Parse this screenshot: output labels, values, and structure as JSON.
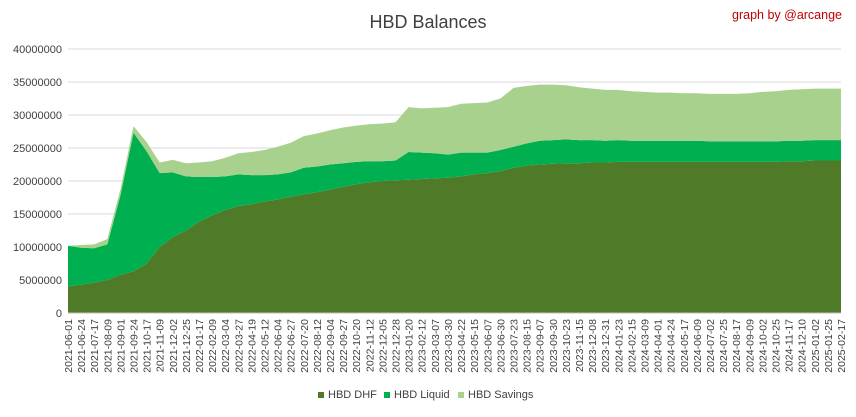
{
  "chart_data": {
    "type": "area",
    "stacked": true,
    "title": "HBD Balances",
    "credit": "graph by @arcange",
    "credit_color": "#c00000",
    "xlabel": "",
    "ylabel": "",
    "ylim": [
      0,
      40000000
    ],
    "y_ticks": [
      "0",
      "5000000",
      "10000000",
      "15000000",
      "20000000",
      "25000000",
      "30000000",
      "35000000",
      "40000000"
    ],
    "grid": true,
    "legend_position": "bottom",
    "x_tick_labels": [
      "2021-06-01",
      "2021-06-24",
      "2021-07-17",
      "2021-08-09",
      "2021-09-01",
      "2021-09-24",
      "2021-10-17",
      "2021-11-09",
      "2021-12-02",
      "2021-12-25",
      "2022-01-17",
      "2022-02-09",
      "2022-03-04",
      "2022-03-27",
      "2022-04-19",
      "2022-05-12",
      "2022-06-04",
      "2022-06-27",
      "2022-07-20",
      "2022-08-12",
      "2022-09-04",
      "2022-09-27",
      "2022-10-20",
      "2022-11-12",
      "2022-12-05",
      "2022-12-28",
      "2023-01-20",
      "2023-02-12",
      "2023-03-07",
      "2023-03-30",
      "2023-04-22",
      "2023-05-15",
      "2023-06-07",
      "2023-06-30",
      "2023-07-23",
      "2023-08-15",
      "2023-09-07",
      "2023-09-30",
      "2023-10-23",
      "2023-11-15",
      "2023-12-08",
      "2023-12-31",
      "2024-01-23",
      "2024-02-15",
      "2024-03-09",
      "2024-04-01",
      "2024-04-24",
      "2024-05-17",
      "2024-06-09",
      "2024-07-02",
      "2024-07-25",
      "2024-08-17",
      "2024-09-09",
      "2024-10-02",
      "2024-10-25",
      "2024-11-17",
      "2024-12-10",
      "2025-01-02",
      "2025-01-25",
      "2025-02-17"
    ],
    "x": [
      "2021-06-01",
      "2021-06-24",
      "2021-07-17",
      "2021-08-09",
      "2021-09-01",
      "2021-09-24",
      "2021-10-17",
      "2021-11-09",
      "2021-12-02",
      "2021-12-25",
      "2022-01-17",
      "2022-02-09",
      "2022-03-04",
      "2022-03-27",
      "2022-04-19",
      "2022-05-12",
      "2022-06-04",
      "2022-06-27",
      "2022-07-20",
      "2022-08-12",
      "2022-09-04",
      "2022-09-27",
      "2022-10-20",
      "2022-11-12",
      "2022-12-05",
      "2022-12-28",
      "2023-01-20",
      "2023-02-12",
      "2023-03-07",
      "2023-03-30",
      "2023-04-22",
      "2023-05-15",
      "2023-06-07",
      "2023-06-30",
      "2023-07-23",
      "2023-08-15",
      "2023-09-07",
      "2023-09-30",
      "2023-10-23",
      "2023-11-15",
      "2023-12-08",
      "2023-12-31",
      "2024-01-23",
      "2024-02-15",
      "2024-03-09",
      "2024-04-01",
      "2024-04-24",
      "2024-05-17",
      "2024-06-09",
      "2024-07-02",
      "2024-07-25",
      "2024-08-17",
      "2024-09-09",
      "2024-10-02",
      "2024-10-25",
      "2024-11-17",
      "2024-12-10",
      "2025-01-02",
      "2025-01-25",
      "2025-02-17"
    ],
    "series": [
      {
        "name": "HBD DHF",
        "color": "#4f7a28",
        "values": [
          4000000,
          4300000,
          4600000,
          5000000,
          5800000,
          6300000,
          7500000,
          10000000,
          11500000,
          12500000,
          13800000,
          14800000,
          15600000,
          16200000,
          16500000,
          16900000,
          17200000,
          17600000,
          18000000,
          18300000,
          18700000,
          19100000,
          19500000,
          19800000,
          20000000,
          20100000,
          20200000,
          20300000,
          20400000,
          20500000,
          20700000,
          21000000,
          21200000,
          21500000,
          22000000,
          22300000,
          22500000,
          22600000,
          22700000,
          22700000,
          22800000,
          22800000,
          22900000,
          22900000,
          22900000,
          22900000,
          22900000,
          22900000,
          22900000,
          22900000,
          22900000,
          22900000,
          22900000,
          22900000,
          22900000,
          23000000,
          23000000,
          23100000,
          23100000,
          23100000
        ]
      },
      {
        "name": "HBD Liquid",
        "color": "#00b050",
        "values": [
          6200000,
          5600000,
          5200000,
          5400000,
          12000000,
          21000000,
          17000000,
          11200000,
          9800000,
          8200000,
          6800000,
          5800000,
          5100000,
          4800000,
          4400000,
          4000000,
          3800000,
          3700000,
          4000000,
          3900000,
          3800000,
          3600000,
          3400000,
          3200000,
          3000000,
          3000000,
          4200000,
          4000000,
          3800000,
          3500000,
          3600000,
          3300000,
          3100000,
          3200000,
          3200000,
          3400000,
          3600000,
          3600000,
          3600000,
          3500000,
          3400000,
          3300000,
          3300000,
          3200000,
          3200000,
          3200000,
          3200000,
          3200000,
          3200000,
          3100000,
          3100000,
          3100000,
          3100000,
          3100000,
          3100000,
          3100000,
          3100000,
          3100000,
          3100000,
          3100000
        ]
      },
      {
        "name": "HBD Savings",
        "color": "#a9d18e",
        "values": [
          0,
          400000,
          600000,
          800000,
          900000,
          1000000,
          1400000,
          1600000,
          1900000,
          2000000,
          2200000,
          2400000,
          2800000,
          3200000,
          3500000,
          3800000,
          4200000,
          4500000,
          4800000,
          5000000,
          5200000,
          5400000,
          5500000,
          5600000,
          5700000,
          5800000,
          6800000,
          6700000,
          6900000,
          7200000,
          7400000,
          7500000,
          7600000,
          7800000,
          8900000,
          8700000,
          8500000,
          8400000,
          8200000,
          8000000,
          7800000,
          7700000,
          7600000,
          7500000,
          7400000,
          7300000,
          7300000,
          7200000,
          7200000,
          7200000,
          7200000,
          7200000,
          7300000,
          7500000,
          7600000,
          7700000,
          7800000,
          7800000,
          7800000,
          7800000
        ]
      }
    ]
  }
}
